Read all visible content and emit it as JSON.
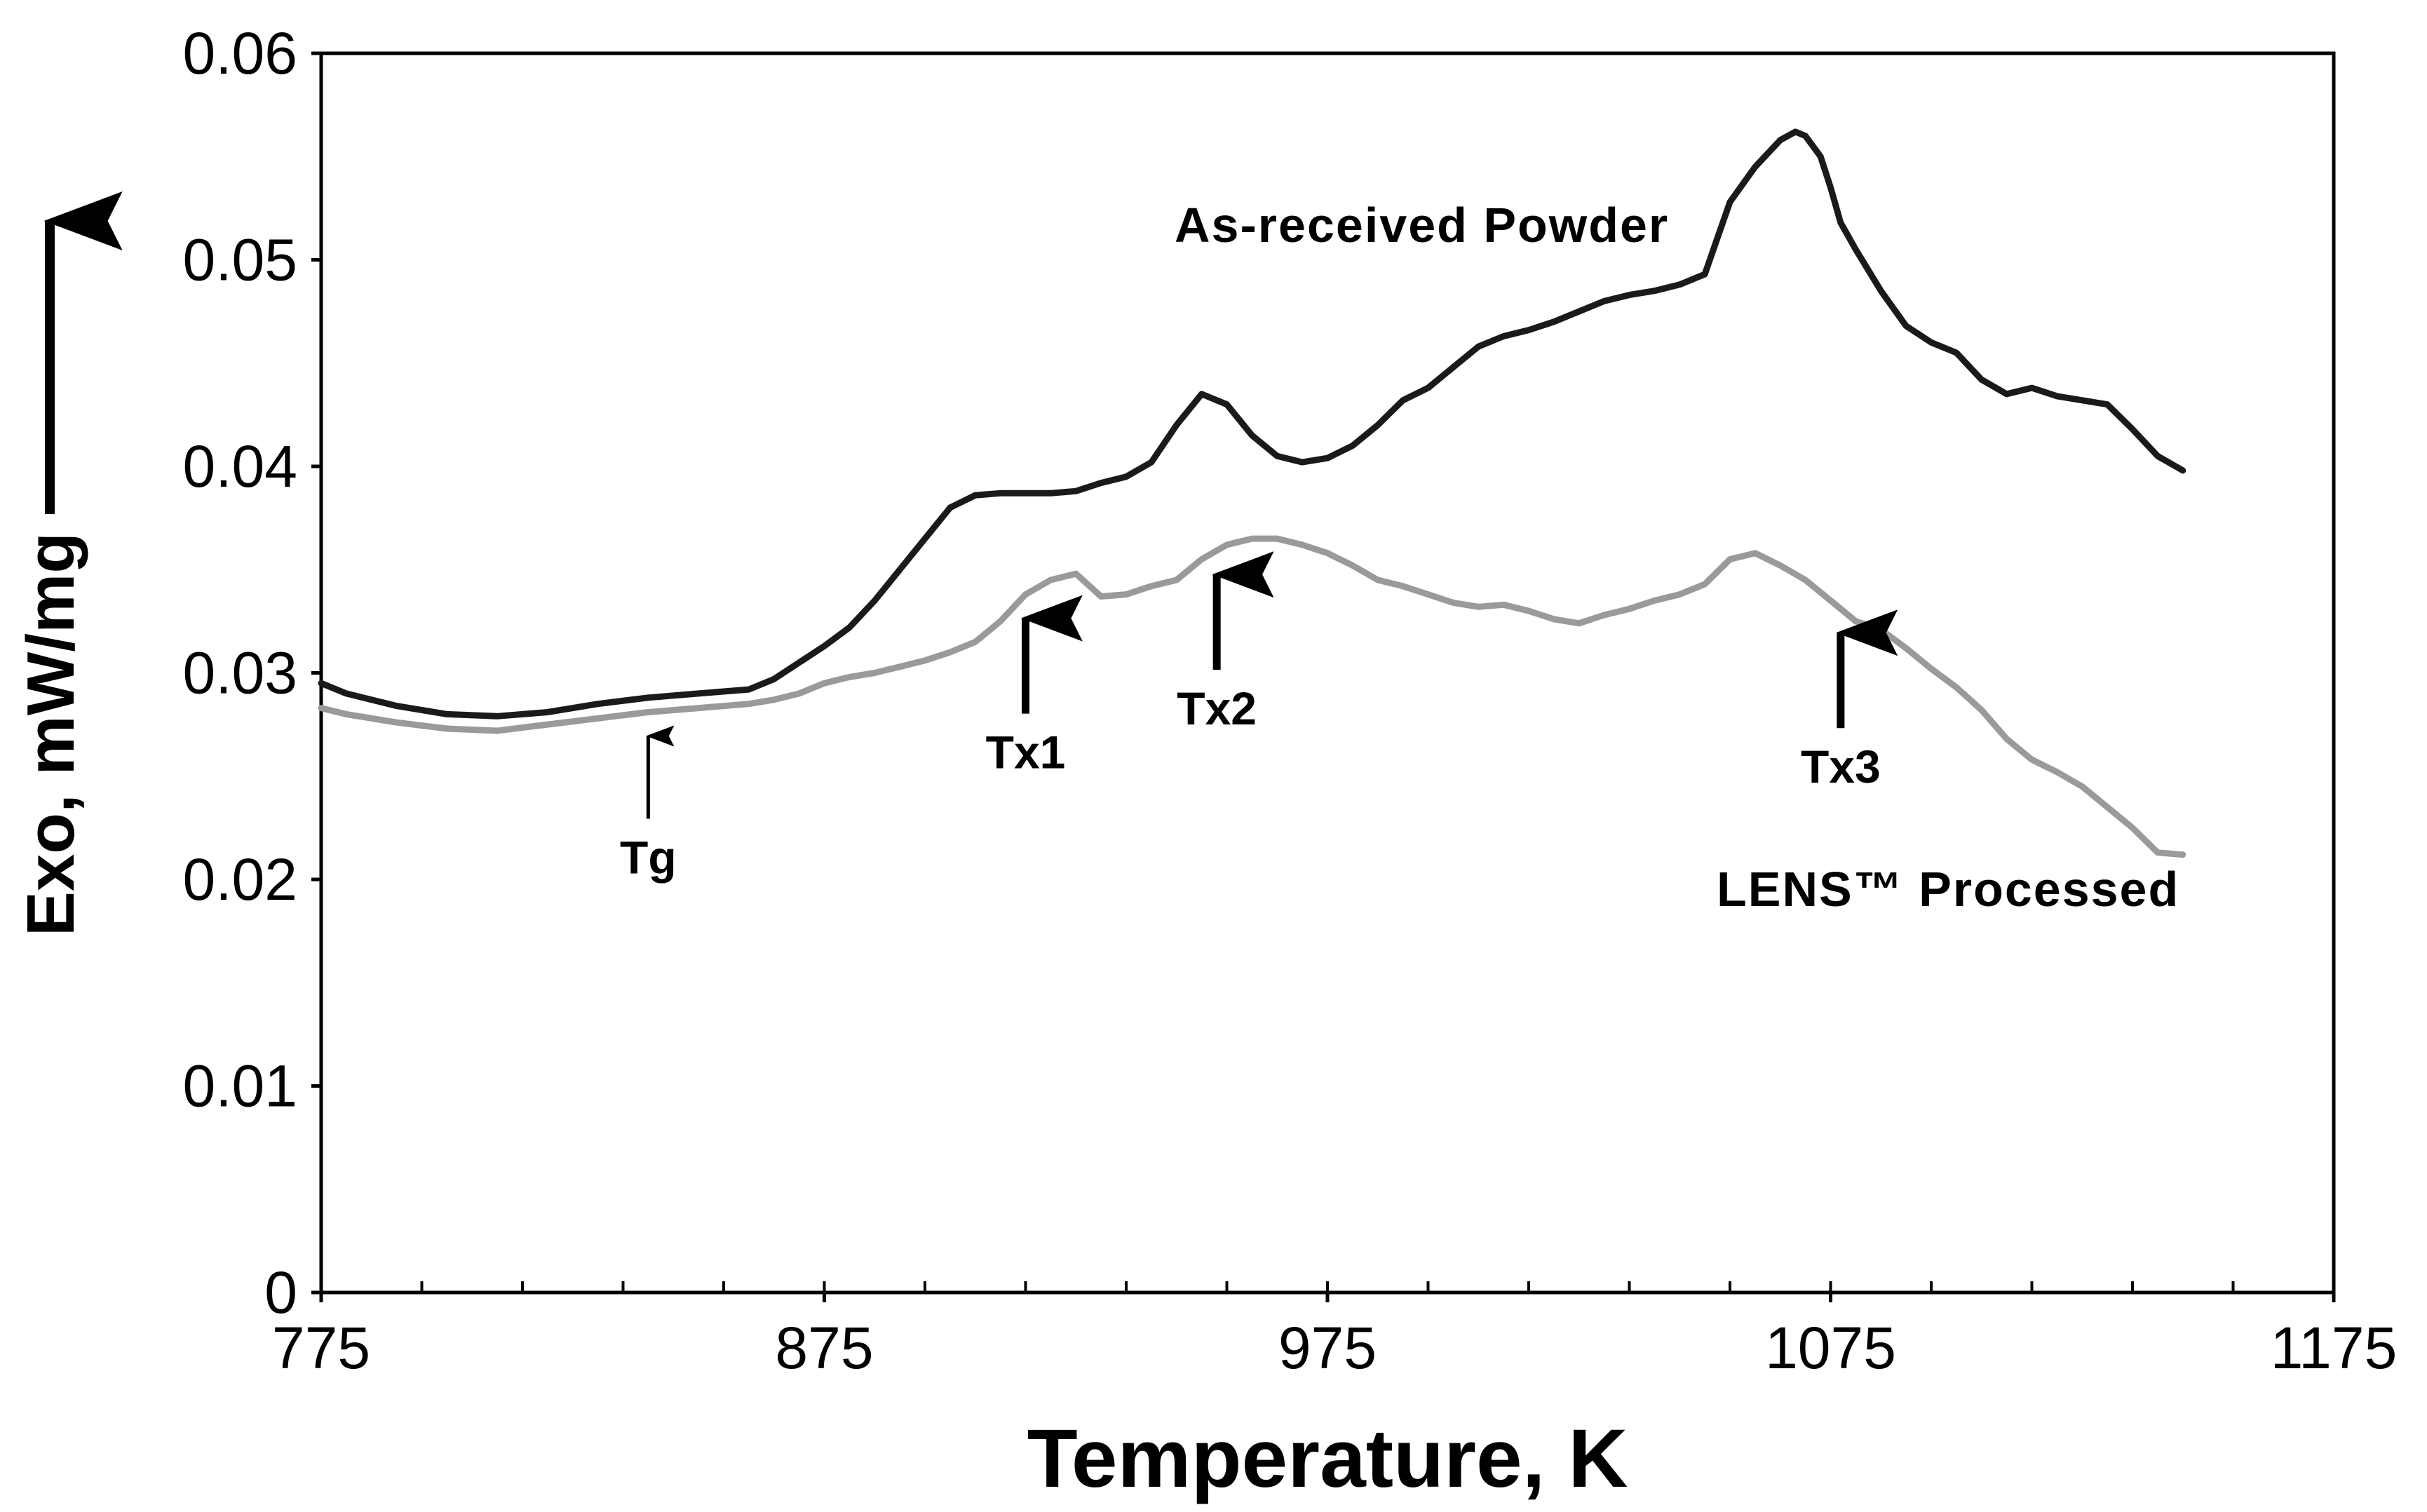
{
  "chart_data": {
    "type": "line",
    "title": "",
    "xlabel": "Temperature, K",
    "ylabel": "Exo, mW/mg",
    "xlim": [
      775,
      1175
    ],
    "ylim": [
      0,
      0.06
    ],
    "x_ticks": [
      "775",
      "875",
      "975",
      "1075",
      "1175"
    ],
    "y_ticks": [
      "0",
      "0.01",
      "0.02",
      "0.03",
      "0.04",
      "0.05",
      "0.06"
    ],
    "x_minor_step": 20,
    "grid": false,
    "series": [
      {
        "name": "As-received Powder",
        "color": "#1a1a1a",
        "x": [
          775,
          780,
          790,
          800,
          810,
          820,
          830,
          840,
          850,
          860,
          865,
          870,
          875,
          880,
          885,
          890,
          895,
          900,
          905,
          910,
          915,
          920,
          925,
          930,
          935,
          940,
          945,
          950,
          955,
          960,
          965,
          970,
          975,
          980,
          985,
          990,
          995,
          1000,
          1005,
          1010,
          1015,
          1020,
          1025,
          1030,
          1035,
          1040,
          1045,
          1050,
          1055,
          1060,
          1065,
          1068,
          1070,
          1073,
          1075,
          1077,
          1080,
          1085,
          1090,
          1095,
          1100,
          1105,
          1110,
          1115,
          1120,
          1125,
          1130,
          1135,
          1140,
          1145
        ],
        "y": [
          0.0295,
          0.029,
          0.0284,
          0.028,
          0.0279,
          0.0281,
          0.0285,
          0.0288,
          0.029,
          0.0292,
          0.0297,
          0.0305,
          0.0313,
          0.0322,
          0.0335,
          0.035,
          0.0365,
          0.038,
          0.0386,
          0.0387,
          0.0387,
          0.0387,
          0.0388,
          0.0392,
          0.0395,
          0.0402,
          0.042,
          0.0435,
          0.043,
          0.0415,
          0.0405,
          0.0402,
          0.0404,
          0.041,
          0.042,
          0.0432,
          0.0438,
          0.0448,
          0.0458,
          0.0463,
          0.0466,
          0.047,
          0.0475,
          0.048,
          0.0483,
          0.0485,
          0.0488,
          0.0493,
          0.0528,
          0.0545,
          0.0558,
          0.0562,
          0.056,
          0.055,
          0.0535,
          0.0518,
          0.0505,
          0.0485,
          0.0468,
          0.046,
          0.0455,
          0.0442,
          0.0435,
          0.0438,
          0.0434,
          0.0432,
          0.043,
          0.0418,
          0.0405,
          0.0398
        ]
      },
      {
        "name": "LENS™ Processed",
        "color": "#9a9a9a",
        "x": [
          775,
          780,
          790,
          800,
          810,
          820,
          830,
          840,
          850,
          860,
          865,
          870,
          875,
          880,
          885,
          890,
          895,
          900,
          905,
          910,
          915,
          920,
          925,
          930,
          935,
          940,
          945,
          950,
          955,
          960,
          965,
          970,
          975,
          980,
          985,
          990,
          995,
          1000,
          1005,
          1010,
          1015,
          1020,
          1025,
          1030,
          1035,
          1040,
          1045,
          1050,
          1055,
          1060,
          1065,
          1070,
          1075,
          1080,
          1085,
          1090,
          1095,
          1100,
          1105,
          1110,
          1115,
          1120,
          1125,
          1130,
          1135,
          1140,
          1145
        ],
        "y": [
          0.0283,
          0.028,
          0.0276,
          0.0273,
          0.0272,
          0.0275,
          0.0278,
          0.0281,
          0.0283,
          0.0285,
          0.0287,
          0.029,
          0.0295,
          0.0298,
          0.03,
          0.0303,
          0.0306,
          0.031,
          0.0315,
          0.0325,
          0.0338,
          0.0345,
          0.0348,
          0.0337,
          0.0338,
          0.0342,
          0.0345,
          0.0355,
          0.0362,
          0.0365,
          0.0365,
          0.0362,
          0.0358,
          0.0352,
          0.0345,
          0.0342,
          0.0338,
          0.0334,
          0.0332,
          0.0333,
          0.033,
          0.0326,
          0.0324,
          0.0328,
          0.0331,
          0.0335,
          0.0338,
          0.0343,
          0.0355,
          0.0358,
          0.0352,
          0.0345,
          0.0335,
          0.0325,
          0.0321,
          0.0312,
          0.0302,
          0.0293,
          0.0282,
          0.0268,
          0.0258,
          0.0252,
          0.0245,
          0.0235,
          0.0225,
          0.0213,
          0.0212
        ]
      }
    ],
    "annotations": [
      {
        "label": "Tg",
        "x": 840
      },
      {
        "label": "Tx1",
        "x": 915
      },
      {
        "label": "Tx2",
        "x": 953
      },
      {
        "label": "Tx3",
        "x": 1077
      }
    ]
  }
}
